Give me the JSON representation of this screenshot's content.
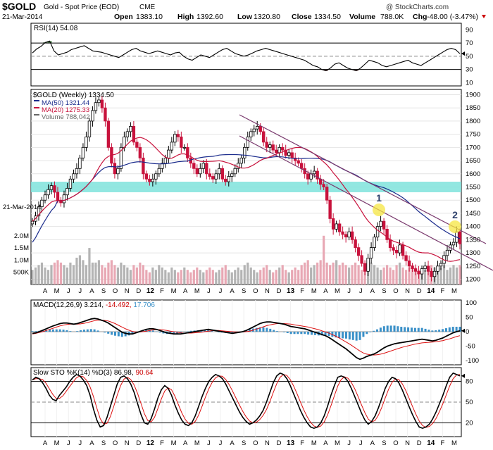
{
  "header": {
    "ticker": "$GOLD",
    "name": "Gold - Spot Price (EOD)",
    "exchange": "CME",
    "date": "21-Mar-2014",
    "watermark": "@ StockCharts.com",
    "open_label": "Open",
    "open": "1383.10",
    "high_label": "High",
    "high": "1392.60",
    "low_label": "Low",
    "low": "1320.80",
    "close_label": "Close",
    "close": "1334.50",
    "volume_label": "Volume",
    "volume": "788.0K",
    "chg_label": "Chg",
    "chg": "-48.00 (-3.47%)",
    "chg_color": "#cc0000"
  },
  "colors": {
    "up_candle": "#000000",
    "down_candle": "#c8123c",
    "ma50": "#1a2b8c",
    "ma20": "#c8123c",
    "volume_up": "#b4b4b4",
    "volume_down": "#e8a8b4",
    "support_zone": "#7fe3dc",
    "trendline": "#7a3a6e",
    "highlight": "#f5e642",
    "macd_hist": "#3a90c8",
    "rsi_fill_high": "#3a7a3a",
    "rsi_fill_low": "#7a3a3a"
  },
  "chart_data": [
    {
      "type": "line",
      "title": "RSI(14) 54.08",
      "indicator_label": "RSI(14)",
      "indicator_value": "54.08",
      "ylim": [
        5,
        100
      ],
      "ticks": [
        "90",
        "70",
        "50",
        "30",
        "10"
      ],
      "reference_levels": [
        70,
        50,
        30
      ],
      "values": [
        55,
        61,
        65,
        71,
        73,
        58,
        52,
        54,
        56,
        60,
        62,
        64,
        66,
        62,
        58,
        57,
        56,
        54,
        52,
        50,
        48,
        52,
        56,
        60,
        62,
        58,
        56,
        54,
        56,
        58,
        56,
        54,
        52,
        55,
        56,
        50,
        46,
        44,
        48,
        52,
        50,
        48,
        52,
        56,
        60,
        62,
        58,
        54,
        52,
        50,
        52,
        55,
        58,
        60,
        62,
        60,
        58,
        56,
        54,
        52,
        50,
        48,
        46,
        44,
        40,
        36,
        34,
        30,
        28,
        32,
        38,
        40,
        36,
        32,
        30,
        28,
        32,
        38,
        44,
        42,
        40,
        36,
        34,
        36,
        38,
        40,
        42,
        44,
        40,
        38,
        36,
        40,
        44,
        48,
        52,
        56,
        60,
        62,
        60,
        54
      ]
    },
    {
      "type": "candlestick",
      "title": "$GOLD (Weekly) 1334.50",
      "legend": [
        {
          "label": "MA(50) 1321.44",
          "color": "#1a2b8c"
        },
        {
          "label": "MA(20) 1275.33",
          "color": "#c8123c"
        },
        {
          "label": "Volume 788,042",
          "color": "#666666"
        }
      ],
      "ylim": [
        1180,
        1920
      ],
      "price_ticks": [
        "1900",
        "1850",
        "1800",
        "1750",
        "1700",
        "1650",
        "1600",
        "1550",
        "1500",
        "1450",
        "1400",
        "1350",
        "1300",
        "1250",
        "1200"
      ],
      "volume_ticks": [
        "2.0M",
        "1.5M",
        "1.0M",
        "500K"
      ],
      "support_zone": [
        1530,
        1570
      ],
      "closes": [
        1420,
        1440,
        1475,
        1500,
        1520,
        1540,
        1555,
        1530,
        1500,
        1490,
        1520,
        1545,
        1580,
        1600,
        1620,
        1660,
        1700,
        1740,
        1800,
        1840,
        1870,
        1880,
        1850,
        1800,
        1700,
        1640,
        1600,
        1620,
        1700,
        1740,
        1760,
        1780,
        1720,
        1700,
        1660,
        1600,
        1580,
        1570,
        1580,
        1600,
        1620,
        1640,
        1660,
        1690,
        1720,
        1750,
        1740,
        1700,
        1700,
        1660,
        1640,
        1620,
        1600,
        1620,
        1640,
        1600,
        1590,
        1580,
        1600,
        1620,
        1580,
        1570,
        1590,
        1600,
        1620,
        1640,
        1660,
        1700,
        1740,
        1760,
        1770,
        1780,
        1760,
        1720,
        1700,
        1710,
        1690,
        1680,
        1700,
        1690,
        1670,
        1680,
        1660,
        1650,
        1640,
        1620,
        1600,
        1580,
        1600,
        1610,
        1580,
        1560,
        1550,
        1500,
        1430,
        1390,
        1410,
        1380,
        1370,
        1360,
        1380,
        1350,
        1320,
        1290,
        1260,
        1230,
        1280,
        1320,
        1360,
        1400,
        1420,
        1390,
        1350,
        1320,
        1310,
        1300,
        1330,
        1290,
        1270,
        1250,
        1240,
        1230,
        1220,
        1240,
        1250,
        1230,
        1210,
        1230,
        1250,
        1260,
        1290,
        1310,
        1330,
        1340,
        1380,
        1334
      ],
      "volumes": [
        0.6,
        0.7,
        0.8,
        0.9,
        0.7,
        0.6,
        0.8,
        0.9,
        1.0,
        0.9,
        0.8,
        0.7,
        0.9,
        0.8,
        1.1,
        1.2,
        1.0,
        0.8,
        1.5,
        0.9,
        0.9,
        1.0,
        0.8,
        0.7,
        0.9,
        1.0,
        0.8,
        0.7,
        0.9,
        0.8,
        0.7,
        0.6,
        0.8,
        0.7,
        0.9,
        0.8,
        0.6,
        0.5,
        0.7,
        0.6,
        0.8,
        0.7,
        0.6,
        0.5,
        0.7,
        0.6,
        0.5,
        0.6,
        0.7,
        0.6,
        0.5,
        0.6,
        0.7,
        0.6,
        0.5,
        0.6,
        0.7,
        0.6,
        0.5,
        0.6,
        0.7,
        0.8,
        0.6,
        0.5,
        0.6,
        0.7,
        0.6,
        0.8,
        0.9,
        0.7,
        0.6,
        0.5,
        0.6,
        0.7,
        0.8,
        0.6,
        0.5,
        0.6,
        0.7,
        0.8,
        0.6,
        0.5,
        0.6,
        0.7,
        0.6,
        0.8,
        0.9,
        1.0,
        0.7,
        0.8,
        0.9,
        1.0,
        2.0,
        0.9,
        0.8,
        0.9,
        1.0,
        0.8,
        0.9,
        0.8,
        0.7,
        0.8,
        0.9,
        0.8,
        0.6,
        0.7,
        0.8,
        0.9,
        0.8,
        0.7,
        0.6,
        0.7,
        0.8,
        0.7,
        0.6,
        0.8,
        0.9,
        0.7,
        0.6,
        0.7,
        0.8,
        0.7,
        0.6,
        0.5,
        0.6,
        0.7,
        0.8,
        0.7,
        0.6,
        0.7,
        0.8,
        0.6,
        0.7,
        0.8,
        0.7,
        0.8
      ]
    },
    {
      "type": "line",
      "title": "MACD(12,26,9) 3.214, -14.492, 17.706",
      "indicator_label": "MACD(12,26,9)",
      "macd_value": "3.214",
      "signal_value": "-14.492",
      "hist_value": "17.706",
      "ylim": [
        -115,
        110
      ],
      "ticks": [
        "100",
        "50",
        "0",
        "-50",
        "-100"
      ],
      "macd": [
        -6,
        -4,
        0,
        5,
        10,
        15,
        20,
        24,
        28,
        30,
        30,
        28,
        26,
        28,
        32,
        36,
        40,
        44,
        46,
        44,
        40,
        36,
        30,
        22,
        14,
        6,
        -2,
        -6,
        -8,
        -8,
        -4,
        0,
        4,
        8,
        10,
        10,
        8,
        4,
        0,
        -4,
        -6,
        -8,
        -8,
        -8,
        -6,
        -4,
        -2,
        0,
        2,
        4,
        6,
        8,
        6,
        4,
        2,
        0,
        -2,
        -4,
        -6,
        -4,
        -2,
        0,
        4,
        10,
        16,
        22,
        28,
        32,
        34,
        34,
        32,
        30,
        28,
        26,
        22,
        18,
        16,
        14,
        12,
        10,
        6,
        2,
        -2,
        -6,
        -10,
        -14,
        -20,
        -28,
        -36,
        -44,
        -52,
        -60,
        -70,
        -80,
        -90,
        -96,
        -92,
        -86,
        -82,
        -78,
        -72,
        -64,
        -56,
        -50,
        -46,
        -42,
        -40,
        -38,
        -36,
        -34,
        -32,
        -30,
        -28,
        -26,
        -28,
        -30,
        -32,
        -30,
        -26,
        -22,
        -16,
        -10,
        -4,
        0,
        3
      ],
      "signal": [
        -8,
        -6,
        -3,
        0,
        4,
        8,
        12,
        16,
        20,
        23,
        25,
        26,
        26,
        26,
        27,
        29,
        32,
        35,
        38,
        40,
        40,
        39,
        37,
        33,
        28,
        22,
        16,
        10,
        5,
        1,
        -1,
        -1,
        0,
        2,
        4,
        6,
        7,
        7,
        6,
        4,
        2,
        0,
        -2,
        -4,
        -5,
        -5,
        -5,
        -4,
        -3,
        -2,
        0,
        2,
        3,
        4,
        4,
        3,
        2,
        1,
        0,
        -1,
        -1,
        -1,
        0,
        2,
        5,
        9,
        13,
        17,
        21,
        24,
        26,
        28,
        28,
        28,
        27,
        26,
        24,
        22,
        20,
        18,
        16,
        13,
        10,
        7,
        3,
        -1,
        -5,
        -10,
        -16,
        -22,
        -29,
        -36,
        -43,
        -51,
        -59,
        -67,
        -74,
        -78,
        -80,
        -81,
        -80,
        -78,
        -75,
        -71,
        -67,
        -63,
        -59,
        -55,
        -52,
        -49,
        -46,
        -43,
        -41,
        -39,
        -38,
        -37,
        -36,
        -35,
        -33,
        -31,
        -28,
        -25,
        -21,
        -17,
        -14
      ]
    },
    {
      "type": "line",
      "title": "Slow STO %K(14) %D(3) 86.98, 90.64",
      "indicator_label": "Slow STO %K(14) %D(3)",
      "k_value": "86.98",
      "d_value": "90.64",
      "ylim": [
        0,
        100
      ],
      "ticks": [
        "80",
        "50",
        "20"
      ],
      "reference_levels": [
        80,
        50,
        20
      ],
      "k": [
        82,
        86,
        84,
        78,
        70,
        60,
        54,
        52,
        60,
        66,
        72,
        80,
        86,
        90,
        88,
        82,
        74,
        60,
        40,
        24,
        14,
        16,
        28,
        44,
        60,
        76,
        86,
        88,
        84,
        76,
        64,
        48,
        32,
        20,
        18,
        26,
        40,
        56,
        68,
        74,
        70,
        60,
        46,
        34,
        24,
        18,
        16,
        20,
        30,
        44,
        58,
        70,
        80,
        86,
        90,
        88,
        84,
        76,
        66,
        56,
        46,
        36,
        28,
        22,
        18,
        20,
        24,
        30,
        38,
        50,
        64,
        78,
        88,
        92,
        90,
        84,
        74,
        62,
        50,
        38,
        28,
        20,
        14,
        12,
        14,
        20,
        30,
        44,
        60,
        74,
        86,
        88,
        86,
        80,
        70,
        58,
        46,
        34,
        24,
        18,
        22,
        30,
        42,
        56,
        70,
        80,
        86,
        84,
        78,
        68,
        56,
        44,
        32,
        22,
        14,
        12,
        14,
        18,
        26,
        36,
        48,
        60,
        74,
        86,
        92,
        90,
        88
      ]
    }
  ],
  "x_axis": {
    "months": [
      "A",
      "M",
      "J",
      "J",
      "A",
      "S",
      "O",
      "N",
      "D",
      "12",
      "F",
      "M",
      "A",
      "M",
      "J",
      "J",
      "A",
      "S",
      "O",
      "N",
      "D",
      "13",
      "F",
      "M",
      "A",
      "M",
      "J",
      "J",
      "A",
      "S",
      "O",
      "N",
      "D",
      "14",
      "F",
      "M"
    ],
    "years": [
      "12",
      "13",
      "14"
    ]
  },
  "annotations": [
    {
      "label": "1"
    },
    {
      "label": "2"
    }
  ]
}
